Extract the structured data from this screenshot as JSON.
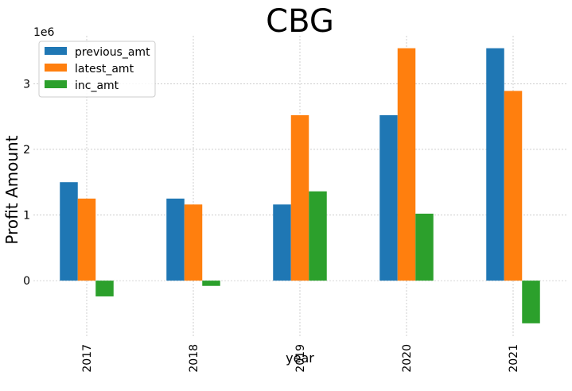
{
  "chart_data": {
    "type": "bar",
    "title": "CBG",
    "xlabel": "year",
    "ylabel": "Profit Amount",
    "y_offset_label": "1e6",
    "categories": [
      "2017",
      "2018",
      "2019",
      "2020",
      "2021"
    ],
    "series": [
      {
        "name": "previous_amt",
        "color": "#1f77b4",
        "values": [
          1500000,
          1250000,
          1160000,
          2520000,
          3540000
        ]
      },
      {
        "name": "latest_amt",
        "color": "#ff7f0e",
        "values": [
          1250000,
          1160000,
          2520000,
          3540000,
          2890000
        ]
      },
      {
        "name": "inc_amt",
        "color": "#2ca02c",
        "values": [
          -240000,
          -80000,
          1360000,
          1020000,
          -650000
        ]
      }
    ],
    "yticks": [
      0,
      1000000,
      2000000,
      3000000
    ],
    "ytick_labels": [
      "0",
      "1",
      "2",
      "3"
    ],
    "ylim": [
      -870000,
      3730000
    ],
    "grid": true,
    "legend_position": "top-left"
  }
}
